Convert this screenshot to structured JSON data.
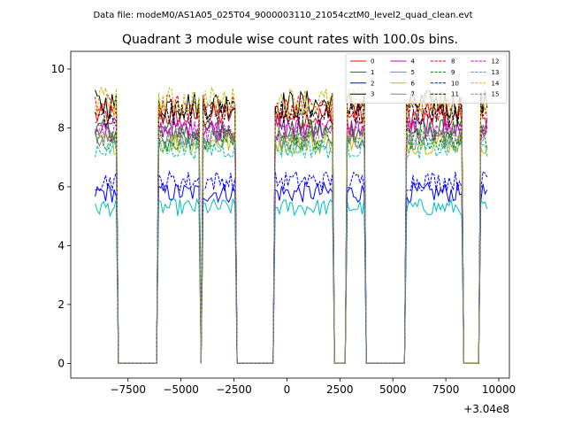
{
  "figure": {
    "suptitle": "Data file: modeM0/AS1A05_025T04_9000003110_21054cztM0_level2_quad_clean.evt",
    "x_offset_label": "+3.04e8"
  },
  "chart_data": {
    "type": "line",
    "title": "Quadrant 3 module wise count rates with 100.0s bins.",
    "xlabel": "",
    "ylabel": "",
    "xlim": [
      -10200,
      10500
    ],
    "ylim": [
      -0.5,
      10.6
    ],
    "x_offset": 304000000,
    "x_ticks": [
      -7500,
      -5000,
      -2500,
      0,
      2500,
      5000,
      7500,
      10000
    ],
    "x_tick_labels": [
      "−7500",
      "−5000",
      "−2500",
      "0",
      "2500",
      "5000",
      "7500",
      "10000"
    ],
    "y_ticks": [
      0,
      2,
      4,
      6,
      8,
      10
    ],
    "y_tick_labels": [
      "0",
      "2",
      "4",
      "6",
      "8",
      "10"
    ],
    "bin_width": 100,
    "x_start": -9050,
    "x_end": 9450,
    "on_segments": [
      [
        -9050,
        -8050
      ],
      [
        -6050,
        -4150
      ],
      [
        -3550,
        -3950
      ],
      [
        -3550,
        -2450
      ],
      [
        -550,
        2150
      ],
      [
        2850,
        3650
      ],
      [
        5650,
        8250
      ],
      [
        9150,
        9450
      ]
    ],
    "transition_zeros": [
      [
        -7950
      ],
      [
        -6150
      ],
      [
        -4050
      ],
      [
        -2350
      ],
      [
        -650
      ],
      [
        2250
      ],
      [
        2750
      ],
      [
        3750
      ],
      [
        5550
      ],
      [
        8350
      ],
      [
        9050
      ]
    ],
    "legend_location": "upper-right",
    "legend_columns": 4,
    "series": [
      {
        "name": "0",
        "color": "#ff0000",
        "style": "solid",
        "level": 8.4,
        "jitter": 0.45
      },
      {
        "name": "1",
        "color": "#008000",
        "style": "solid",
        "level": 7.9,
        "jitter": 0.4
      },
      {
        "name": "2",
        "color": "#0000ff",
        "style": "solid",
        "level": 5.8,
        "jitter": 0.35
      },
      {
        "name": "3",
        "color": "#000000",
        "style": "solid",
        "level": 8.8,
        "jitter": 0.5
      },
      {
        "name": "4",
        "color": "#bf00bf",
        "style": "solid",
        "level": 8.0,
        "jitter": 0.4
      },
      {
        "name": "5",
        "color": "#00bfbf",
        "style": "solid",
        "level": 5.3,
        "jitter": 0.3
      },
      {
        "name": "6",
        "color": "#bfbf00",
        "style": "solid",
        "level": 7.5,
        "jitter": 0.4
      },
      {
        "name": "7",
        "color": "#808080",
        "style": "solid",
        "level": 7.6,
        "jitter": 0.35
      },
      {
        "name": "8",
        "color": "#ff0000",
        "style": "dashed",
        "level": 8.7,
        "jitter": 0.45
      },
      {
        "name": "9",
        "color": "#008000",
        "style": "dashed",
        "level": 7.6,
        "jitter": 0.4
      },
      {
        "name": "10",
        "color": "#0000ff",
        "style": "dashed",
        "level": 6.2,
        "jitter": 0.35
      },
      {
        "name": "11",
        "color": "#000000",
        "style": "dashed",
        "level": 8.5,
        "jitter": 0.45
      },
      {
        "name": "12",
        "color": "#bf00bf",
        "style": "dashed",
        "level": 7.9,
        "jitter": 0.4
      },
      {
        "name": "13",
        "color": "#00bfbf",
        "style": "dashed",
        "level": 7.3,
        "jitter": 0.35
      },
      {
        "name": "14",
        "color": "#bfbf00",
        "style": "dashed",
        "level": 8.9,
        "jitter": 0.5
      },
      {
        "name": "15",
        "color": "#808080",
        "style": "dashed",
        "level": 7.7,
        "jitter": 0.35
      }
    ]
  }
}
